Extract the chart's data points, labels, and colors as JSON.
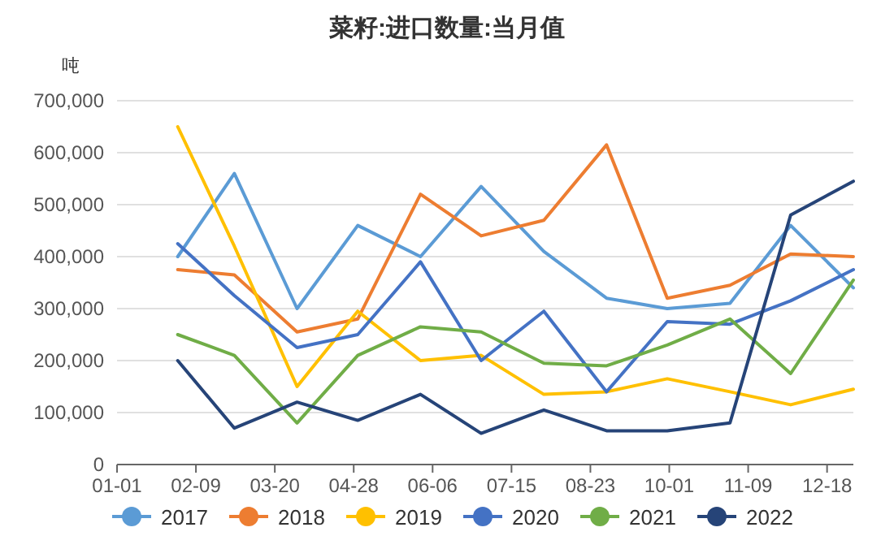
{
  "chart_data": {
    "type": "line",
    "title": "菜籽:进口数量:当月值",
    "ylabel": "吨",
    "x": [
      "--01-31",
      "--02-28",
      "--03-31",
      "--04-30",
      "--05-31",
      "--06-30",
      "--07-31",
      "--08-31",
      "--09-30",
      "--10-31",
      "--11-30",
      "--12-31"
    ],
    "xlim": [
      "--01-01",
      "--12-31"
    ],
    "xticks": [
      {
        "value": "--01-01",
        "label": "01-01"
      },
      {
        "value": "--02-09",
        "label": "02-09"
      },
      {
        "value": "--03-20",
        "label": "03-20"
      },
      {
        "value": "--04-28",
        "label": "04-28"
      },
      {
        "value": "--06-06",
        "label": "06-06"
      },
      {
        "value": "--07-15",
        "label": "07-15"
      },
      {
        "value": "--08-23",
        "label": "08-23"
      },
      {
        "value": "--10-01",
        "label": "10-01"
      },
      {
        "value": "--11-09",
        "label": "11-09"
      },
      {
        "value": "--12-18",
        "label": "12-18"
      }
    ],
    "ylim": [
      0,
      700000
    ],
    "yticks": [
      {
        "value": 0,
        "label": "0"
      },
      {
        "value": 100000,
        "label": "100,000"
      },
      {
        "value": 200000,
        "label": "200,000"
      },
      {
        "value": 300000,
        "label": "300,000"
      },
      {
        "value": 400000,
        "label": "400,000"
      },
      {
        "value": 500000,
        "label": "500,000"
      },
      {
        "value": 600000,
        "label": "600,000"
      },
      {
        "value": 700000,
        "label": "700,000"
      }
    ],
    "grid": "y",
    "legend": "bottom",
    "series": [
      {
        "name": "2017",
        "color": "#5b9bd5",
        "values": [
          400000,
          560000,
          300000,
          460000,
          400000,
          535000,
          410000,
          320000,
          300000,
          310000,
          460000,
          340000
        ]
      },
      {
        "name": "2018",
        "color": "#ed7d31",
        "values": [
          375000,
          365000,
          255000,
          280000,
          520000,
          440000,
          470000,
          615000,
          320000,
          345000,
          405000,
          400000
        ]
      },
      {
        "name": "2019",
        "color": "#ffc000",
        "values": [
          650000,
          420000,
          150000,
          295000,
          200000,
          210000,
          135000,
          140000,
          165000,
          140000,
          115000,
          145000
        ]
      },
      {
        "name": "2020",
        "color": "#4472c4",
        "values": [
          425000,
          325000,
          225000,
          250000,
          390000,
          200000,
          295000,
          140000,
          275000,
          270000,
          315000,
          375000
        ]
      },
      {
        "name": "2021",
        "color": "#70ad47",
        "values": [
          250000,
          210000,
          80000,
          210000,
          265000,
          255000,
          195000,
          190000,
          230000,
          280000,
          175000,
          355000
        ]
      },
      {
        "name": "2022",
        "color": "#264478",
        "values": [
          200000,
          70000,
          120000,
          85000,
          135000,
          60000,
          105000,
          65000,
          65000,
          80000,
          480000,
          545000
        ]
      }
    ]
  }
}
